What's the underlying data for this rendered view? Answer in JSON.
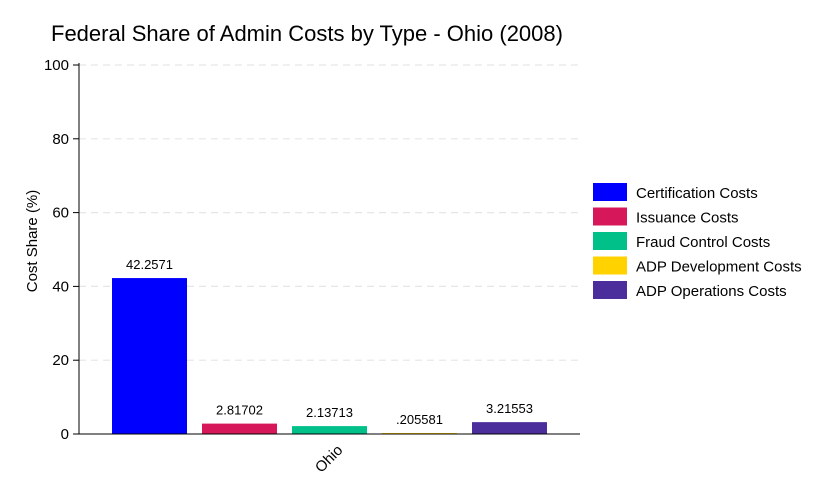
{
  "chart_data": {
    "type": "bar",
    "title": "Federal Share of Admin Costs by Type - Ohio (2008)",
    "xlabel": "",
    "ylabel": "Cost Share (%)",
    "categories": [
      "Ohio"
    ],
    "ylim": [
      0,
      100
    ],
    "yticks": [
      0,
      20,
      40,
      60,
      80,
      100
    ],
    "grid": true,
    "legend_position": "right",
    "series": [
      {
        "name": "Certification Costs",
        "values": [
          42.2571
        ],
        "label": "42.2571",
        "color": "#0000ff"
      },
      {
        "name": "Issuance Costs",
        "values": [
          2.81702
        ],
        "label": "2.81702",
        "color": "#d6185a"
      },
      {
        "name": "Fraud Control Costs",
        "values": [
          2.13713
        ],
        "label": "2.13713",
        "color": "#00c08a"
      },
      {
        "name": "ADP Development Costs",
        "values": [
          0.205581
        ],
        "label": ".205581",
        "color": "#ffd200"
      },
      {
        "name": "ADP Operations Costs",
        "values": [
          3.21553
        ],
        "label": "3.21553",
        "color": "#4b2d9b"
      }
    ]
  }
}
